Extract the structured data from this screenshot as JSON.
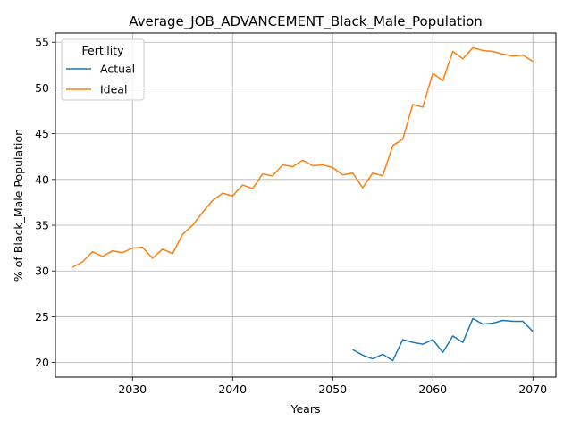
{
  "chart_data": {
    "type": "line",
    "title": "Average_JOB_ADVANCEMENT_Black_Male_Population",
    "xlabel": "Years",
    "ylabel": "% of Black_Male Population",
    "xlim": [
      2022.3,
      2072.3
    ],
    "ylim": [
      18.4,
      56.0
    ],
    "xticks": [
      2030,
      2040,
      2050,
      2060,
      2070
    ],
    "yticks": [
      20,
      25,
      30,
      35,
      40,
      45,
      50,
      55
    ],
    "grid": true,
    "legend": {
      "title": "Fertility",
      "placement": "top-left"
    },
    "series": [
      {
        "name": "Actual",
        "color": "#1f77b4",
        "x": [
          2052,
          2053,
          2054,
          2055,
          2056,
          2057,
          2058,
          2059,
          2060,
          2061,
          2062,
          2063,
          2064,
          2065,
          2066,
          2067,
          2068,
          2069,
          2070
        ],
        "values": [
          21.4,
          20.8,
          20.4,
          20.9,
          20.2,
          22.5,
          22.2,
          22.0,
          22.5,
          21.1,
          22.9,
          22.2,
          24.8,
          24.2,
          24.3,
          24.6,
          24.5,
          24.5,
          23.4
        ]
      },
      {
        "name": "Ideal",
        "color": "#ff7f0e",
        "x": [
          2024,
          2025,
          2026,
          2027,
          2028,
          2029,
          2030,
          2031,
          2032,
          2033,
          2034,
          2035,
          2036,
          2037,
          2038,
          2039,
          2040,
          2041,
          2042,
          2043,
          2044,
          2045,
          2046,
          2047,
          2048,
          2049,
          2050,
          2051,
          2052,
          2053,
          2054,
          2055,
          2056,
          2057,
          2058,
          2059,
          2060,
          2061,
          2062,
          2063,
          2064,
          2065,
          2066,
          2067,
          2068,
          2069,
          2070
        ],
        "values": [
          30.4,
          31.0,
          32.1,
          31.6,
          32.2,
          32.0,
          32.5,
          32.6,
          31.4,
          32.4,
          31.9,
          34.0,
          35.0,
          36.4,
          37.7,
          38.5,
          38.2,
          39.4,
          39.0,
          40.6,
          40.4,
          41.6,
          41.4,
          42.1,
          41.5,
          41.6,
          41.3,
          40.5,
          40.7,
          39.1,
          40.7,
          40.4,
          43.7,
          44.4,
          48.2,
          47.9,
          51.6,
          50.8,
          54.0,
          53.2,
          54.4,
          54.1,
          54.0,
          53.7,
          53.5,
          53.6,
          52.9
        ]
      }
    ]
  }
}
